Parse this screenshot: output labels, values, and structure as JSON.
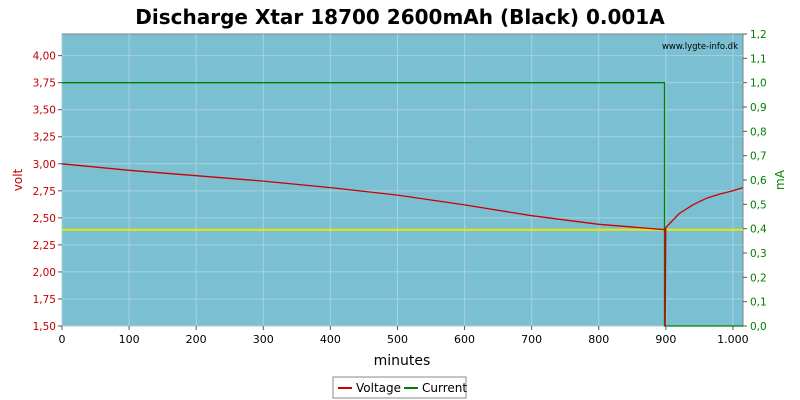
{
  "chart_data": {
    "type": "line",
    "title": "Discharge Xtar 18700 2600mAh (Black) 0.001A",
    "xlabel": "minutes",
    "ylabel_left": "volt",
    "ylabel_right": "mA",
    "watermark": "www.lygte-info.dk",
    "xlim": [
      0,
      1015
    ],
    "ylim_left": [
      1.5,
      4.2
    ],
    "ylim_right": [
      0,
      1.2
    ],
    "x_ticks": [
      0,
      100,
      200,
      300,
      400,
      500,
      600,
      700,
      800,
      900,
      1000
    ],
    "x_tick_labels": [
      "0",
      "100",
      "200",
      "300",
      "400",
      "500",
      "600",
      "700",
      "800",
      "900",
      "1.000"
    ],
    "y_left_ticks": [
      1.5,
      1.75,
      2.0,
      2.25,
      2.5,
      2.75,
      3.0,
      3.25,
      3.5,
      3.75,
      4.0
    ],
    "y_left_tick_labels": [
      "1,50",
      "1,75",
      "2,00",
      "2,25",
      "2,50",
      "2,75",
      "3,00",
      "3,25",
      "3,50",
      "3,75",
      "4,00"
    ],
    "y_right_ticks": [
      0,
      0.1,
      0.2,
      0.3,
      0.4,
      0.5,
      0.6,
      0.7,
      0.8,
      0.9,
      1.0,
      1.1,
      1.2
    ],
    "y_right_tick_labels": [
      "0,0",
      "0,1",
      "0,2",
      "0,3",
      "0,4",
      "0,5",
      "0,6",
      "0,7",
      "0,8",
      "0,9",
      "1,0",
      "1,1",
      "1,2"
    ],
    "grid": true,
    "legend_position": "bottom-center",
    "background_color": "#7bbfd3",
    "series": [
      {
        "name": "Voltage",
        "axis": "left",
        "color": "#cc0000",
        "x": [
          0,
          100,
          200,
          300,
          400,
          500,
          600,
          700,
          800,
          899,
          899,
          900,
          920,
          940,
          960,
          980,
          1000,
          1015
        ],
        "y": [
          3.0,
          2.94,
          2.89,
          2.84,
          2.78,
          2.71,
          2.62,
          2.52,
          2.44,
          2.39,
          1.5,
          2.41,
          2.54,
          2.62,
          2.68,
          2.72,
          2.75,
          2.78
        ]
      },
      {
        "name": "Current",
        "axis": "right",
        "color": "#008000",
        "x": [
          0,
          898,
          898,
          1015
        ],
        "y": [
          1.0,
          1.0,
          0.0,
          0.0
        ]
      },
      {
        "axis": "left",
        "color": "#e8e800",
        "x": [
          0,
          1015
        ],
        "y": [
          2.39,
          2.39
        ]
      }
    ]
  }
}
